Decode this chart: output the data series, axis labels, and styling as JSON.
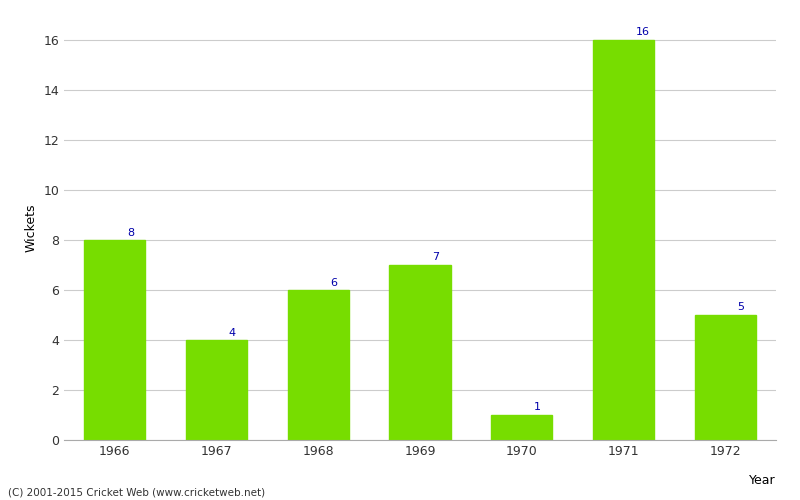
{
  "years": [
    "1966",
    "1967",
    "1968",
    "1969",
    "1970",
    "1971",
    "1972"
  ],
  "wickets": [
    8,
    4,
    6,
    7,
    1,
    16,
    5
  ],
  "bar_color": "#77dd00",
  "label_color": "#0000aa",
  "xlabel": "Year",
  "ylabel": "Wickets",
  "ylim": [
    0,
    17
  ],
  "yticks": [
    0,
    2,
    4,
    6,
    8,
    10,
    12,
    14,
    16
  ],
  "background_color": "#ffffff",
  "grid_color": "#cccccc",
  "footer_text": "(C) 2001-2015 Cricket Web (www.cricketweb.net)",
  "label_fontsize": 8,
  "axis_label_fontsize": 9,
  "tick_fontsize": 9,
  "bar_width": 0.6
}
